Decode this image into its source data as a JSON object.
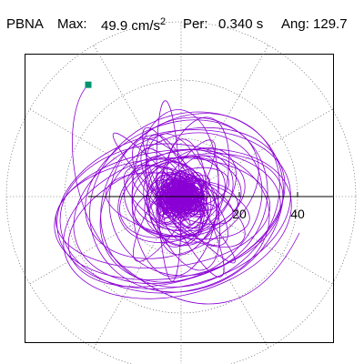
{
  "header": {
    "station": "PBNA",
    "max_label": "Max:",
    "max_value": "49.9 cm/s",
    "max_unit_exp": "2",
    "period_label": "Per:",
    "period_value": "0.340 s",
    "angle_label": "Ang: 129.7"
  },
  "colors": {
    "trace": "#8a00d4",
    "marker": "#00946e",
    "grid": "#555555",
    "axes": "#000000",
    "frame": "#000000"
  },
  "chart_data": {
    "type": "polar-orbit",
    "radial_ticks": [
      20,
      40
    ],
    "radial_tick_labels": [
      "20",
      "40"
    ],
    "grid_circles": [
      20,
      40,
      60
    ],
    "grid_spokes_deg": [
      0,
      30,
      60,
      90,
      120,
      150,
      180,
      210,
      240,
      270,
      300,
      330
    ],
    "max_value": 49.9,
    "peak_angle_deg": 129.7,
    "marker": {
      "r": 49.9,
      "angle_deg": 129.7
    },
    "grid": true,
    "legend": "none"
  }
}
